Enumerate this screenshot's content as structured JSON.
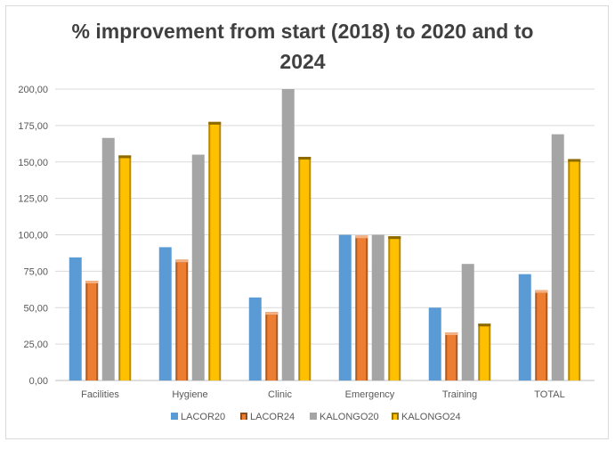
{
  "chart_data": {
    "type": "bar",
    "title": "% improvement from start (2018)  to 2020 and  to 2024",
    "xlabel": "",
    "ylabel": "",
    "categories": [
      "Facilities",
      "Hygiene",
      "Clinic",
      "Emergency",
      "Training",
      "TOTAL"
    ],
    "ylim": [
      0,
      200
    ],
    "yticks": [
      "0,00",
      "25,00",
      "50,00",
      "75,00",
      "100,00",
      "125,00",
      "150,00",
      "175,00",
      "200,00"
    ],
    "grid": true,
    "legend_position": "bottom",
    "series": [
      {
        "name": "LACOR20",
        "color": "#5b9bd5",
        "values": [
          84.5,
          91.5,
          57,
          100,
          50,
          73
        ]
      },
      {
        "name": "LACOR24",
        "color": "#ed7d31",
        "values": [
          68.5,
          83,
          47,
          99.5,
          33,
          62
        ]
      },
      {
        "name": "KALONGO20",
        "color": "#a5a5a5",
        "values": [
          166.5,
          155,
          200,
          100,
          80,
          169
        ]
      },
      {
        "name": "KALONGO24",
        "color": "#ffc000",
        "values": [
          154.5,
          177.5,
          153.5,
          99,
          39,
          152
        ]
      }
    ]
  }
}
